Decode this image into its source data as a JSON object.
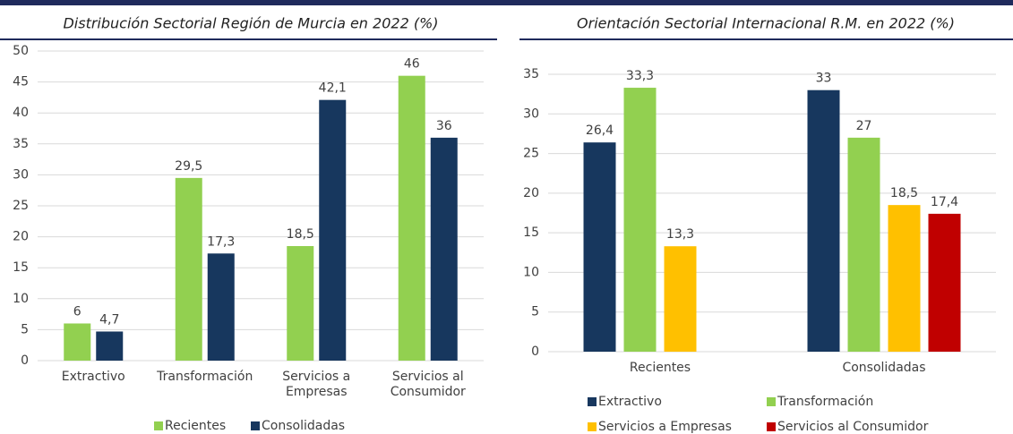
{
  "chart_data": [
    {
      "type": "bar",
      "title": "Distribución Sectorial Región de Murcia en 2022 (%)",
      "categories": [
        "Extractivo",
        "Transformación",
        "Servicios a Empresas",
        "Servicios al Consumidor"
      ],
      "series": [
        {
          "name": "Recientes",
          "color": "#92d050",
          "values": [
            6,
            29.5,
            18.5,
            46
          ],
          "value_labels": [
            "6",
            "29,5",
            "18,5",
            "46"
          ]
        },
        {
          "name": "Consolidadas",
          "color": "#17375e",
          "values": [
            4.7,
            17.3,
            42.1,
            36
          ],
          "value_labels": [
            "4,7",
            "17,3",
            "42,1",
            "36"
          ]
        }
      ],
      "ylim": [
        0,
        50
      ],
      "yticks": [
        0,
        5,
        10,
        15,
        20,
        25,
        30,
        35,
        40,
        45,
        50
      ],
      "grid": true,
      "legend": "bottom"
    },
    {
      "type": "bar",
      "title": "Orientación Sectorial Internacional R.M. en 2022 (%)",
      "categories": [
        "Recientes",
        "Consolidadas"
      ],
      "series": [
        {
          "name": "Extractivo",
          "color": "#17375e",
          "values": [
            26.4,
            33
          ],
          "value_labels": [
            "26,4",
            "33"
          ]
        },
        {
          "name": "Transformación",
          "color": "#92d050",
          "values": [
            33.3,
            27
          ],
          "value_labels": [
            "33,3",
            "27"
          ]
        },
        {
          "name": "Servicios a Empresas",
          "color": "#ffc000",
          "values": [
            13.3,
            18.5
          ],
          "value_labels": [
            "13,3",
            "18,5"
          ]
        },
        {
          "name": "Servicios al Consumidor",
          "color": "#c00000",
          "values": [
            null,
            17.4
          ],
          "value_labels": [
            null,
            "17,4"
          ]
        }
      ],
      "ylim": [
        0,
        35
      ],
      "yticks": [
        0,
        5,
        10,
        15,
        20,
        25,
        30,
        35
      ],
      "grid": true,
      "legend": "bottom"
    }
  ]
}
